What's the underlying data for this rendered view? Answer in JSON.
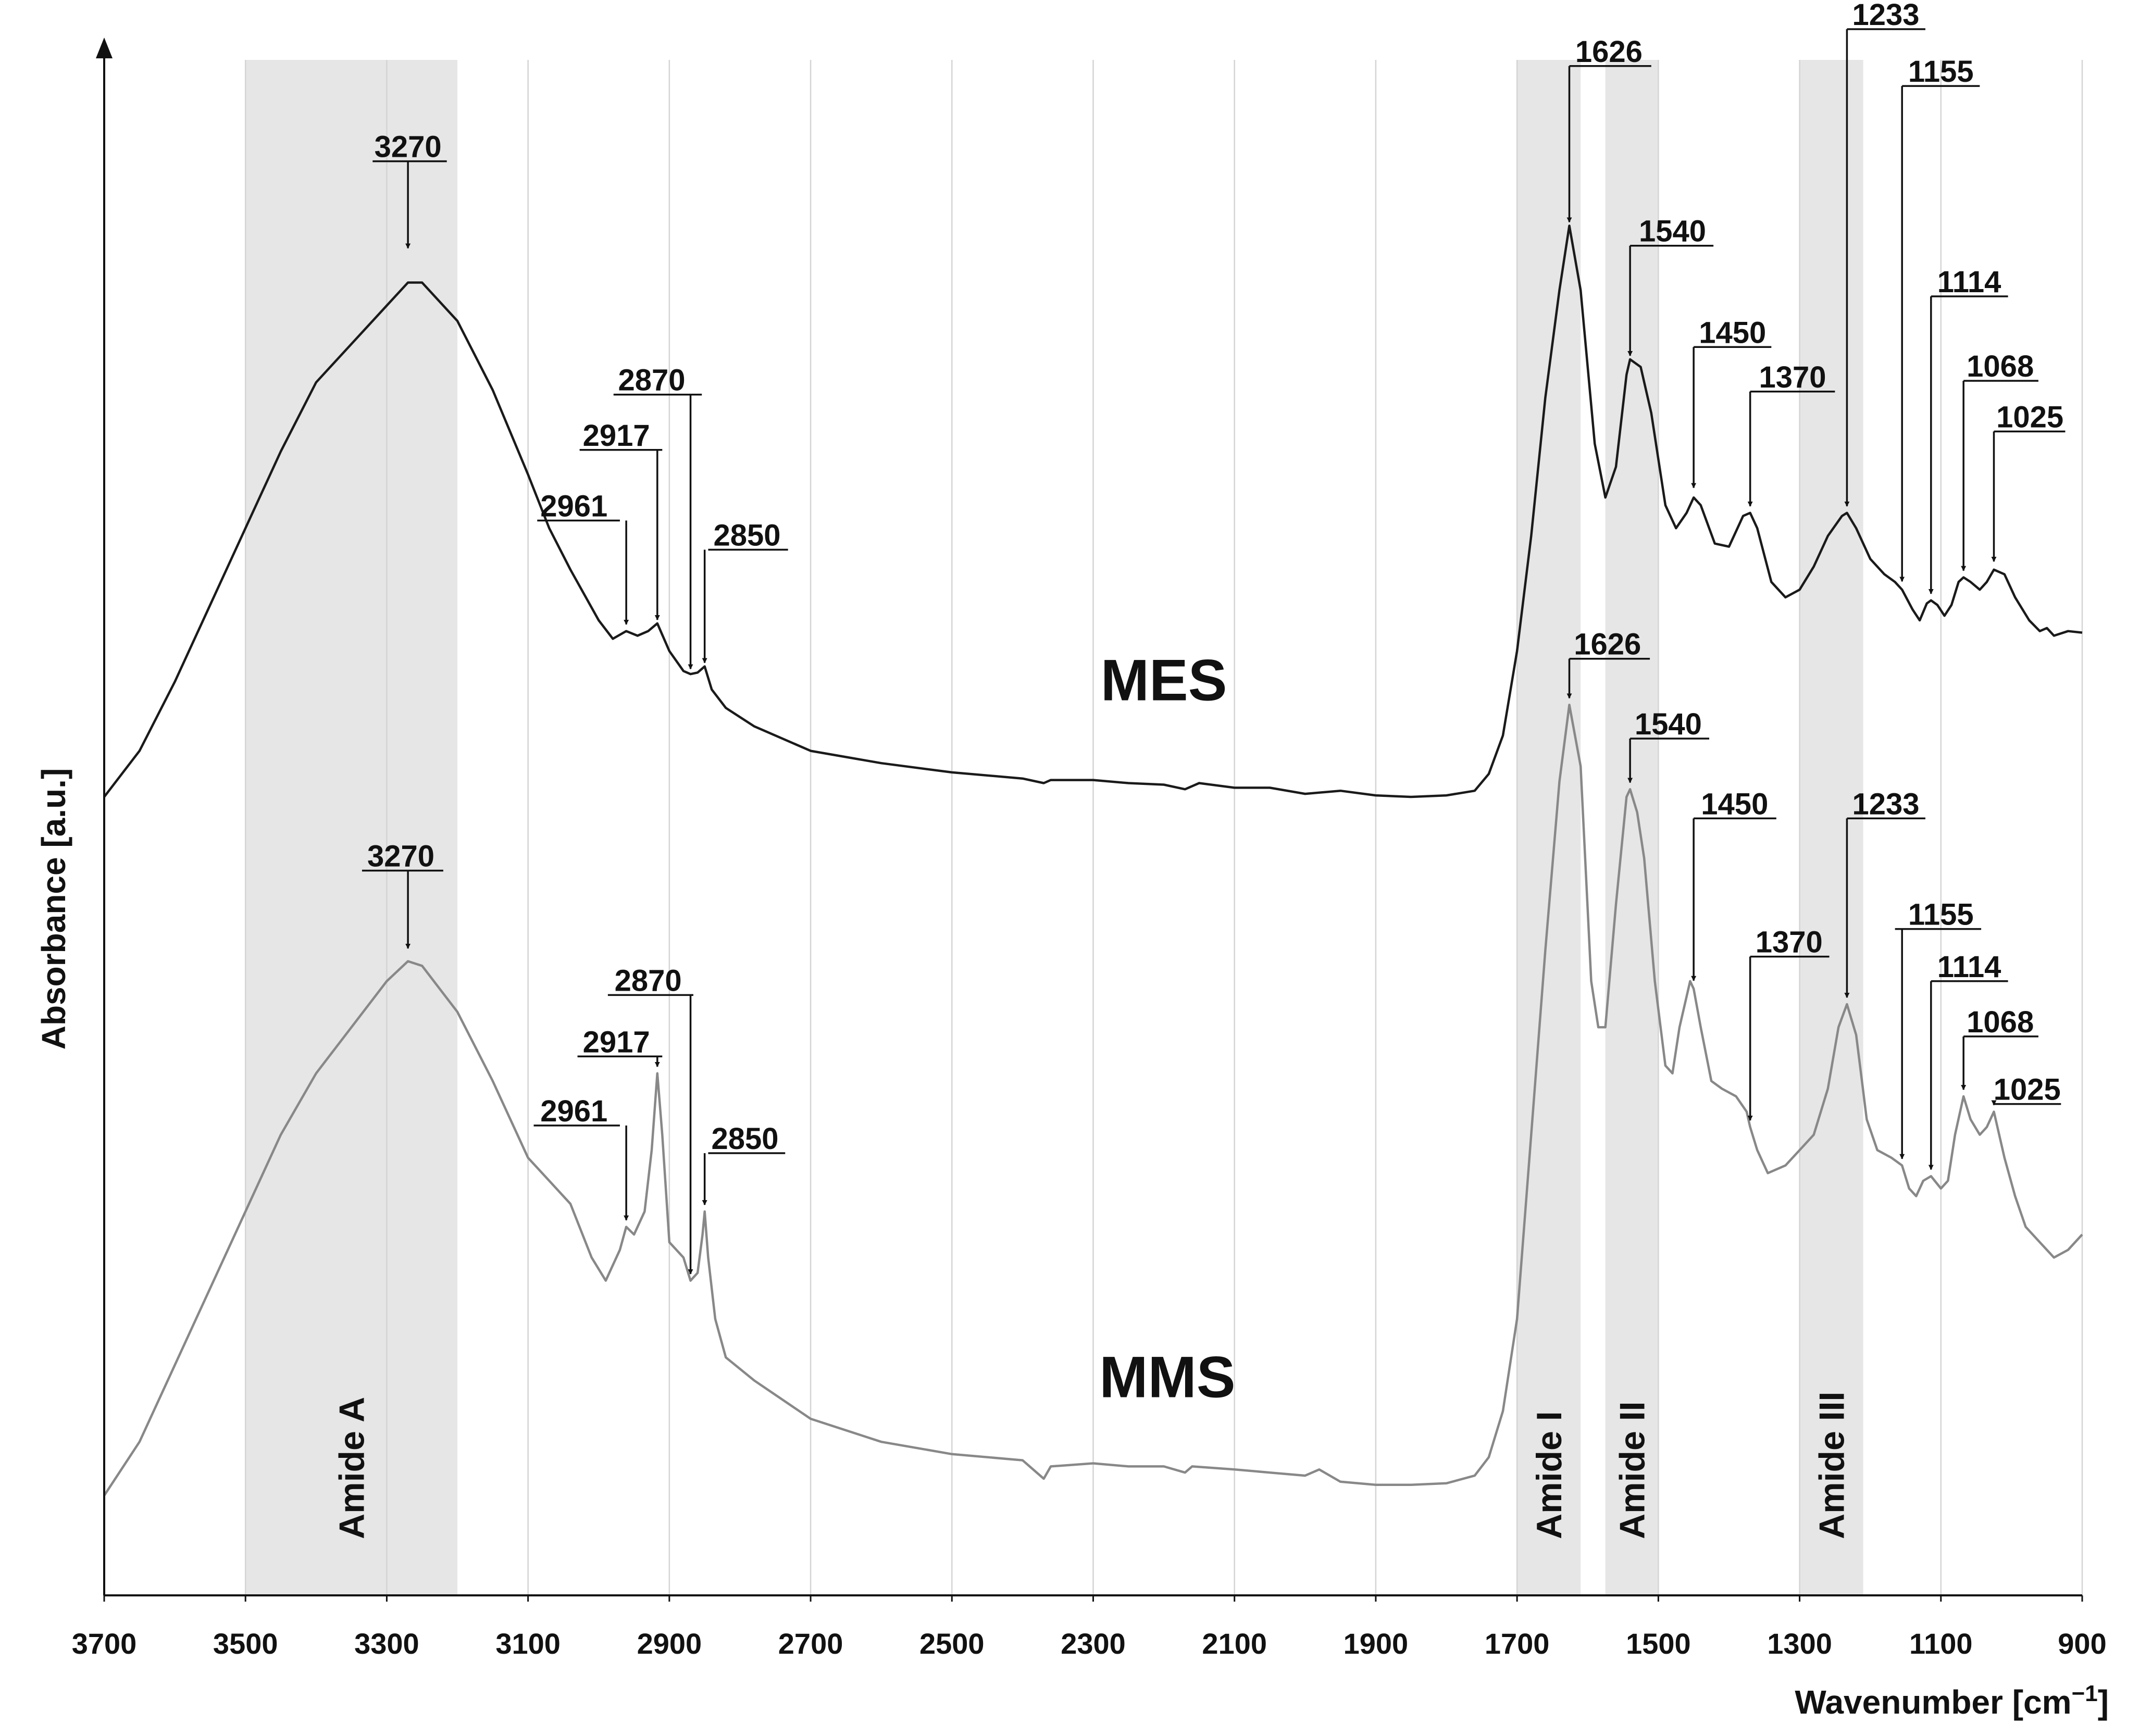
{
  "chart_data": {
    "type": "line",
    "title": "",
    "xlabel_main": "Wavenumber [cm",
    "xlabel_sup": "−1",
    "xlabel_end": "]",
    "ylabel": "Absorbance [a.u.]",
    "xlim": [
      3700,
      900
    ],
    "x_reversed": true,
    "ylim": [
      0,
      100
    ],
    "y_ticks_shown": false,
    "grid": "vertical",
    "x_ticks": [
      "3700",
      "3500",
      "3300",
      "3100",
      "2900",
      "2700",
      "2500",
      "2300",
      "2100",
      "1900",
      "1700",
      "1500",
      "1300",
      "1100",
      "900"
    ],
    "bands": [
      {
        "label": "Amide A",
        "from": 3500,
        "to": 3200
      },
      {
        "label": "Amide I",
        "from": 1700,
        "to": 1610
      },
      {
        "label": "Amide II",
        "from": 1575,
        "to": 1500
      },
      {
        "label": "Amide III",
        "from": 1300,
        "to": 1210
      }
    ],
    "series": [
      {
        "name": "MES",
        "color": "#1a1a1a",
        "points": [
          [
            3700,
            52
          ],
          [
            3650,
            55
          ],
          [
            3600,
            59.5
          ],
          [
            3550,
            64.5
          ],
          [
            3500,
            69.5
          ],
          [
            3450,
            74.5
          ],
          [
            3400,
            79
          ],
          [
            3350,
            81.5
          ],
          [
            3300,
            84
          ],
          [
            3270,
            85.5
          ],
          [
            3250,
            85.5
          ],
          [
            3200,
            83
          ],
          [
            3150,
            78.5
          ],
          [
            3100,
            73
          ],
          [
            3070,
            69.5
          ],
          [
            3040,
            66.8
          ],
          [
            3000,
            63.5
          ],
          [
            2980,
            62.3
          ],
          [
            2961,
            62.8
          ],
          [
            2945,
            62.5
          ],
          [
            2930,
            62.8
          ],
          [
            2917,
            63.3
          ],
          [
            2900,
            61.5
          ],
          [
            2880,
            60.2
          ],
          [
            2870,
            60
          ],
          [
            2860,
            60.1
          ],
          [
            2850,
            60.5
          ],
          [
            2840,
            59
          ],
          [
            2820,
            57.8
          ],
          [
            2780,
            56.6
          ],
          [
            2700,
            55
          ],
          [
            2600,
            54.2
          ],
          [
            2500,
            53.6
          ],
          [
            2400,
            53.2
          ],
          [
            2370,
            52.9
          ],
          [
            2360,
            53.1
          ],
          [
            2300,
            53.1
          ],
          [
            2250,
            52.9
          ],
          [
            2200,
            52.8
          ],
          [
            2170,
            52.5
          ],
          [
            2150,
            52.9
          ],
          [
            2100,
            52.6
          ],
          [
            2050,
            52.6
          ],
          [
            2000,
            52.2
          ],
          [
            1950,
            52.4
          ],
          [
            1900,
            52.1
          ],
          [
            1850,
            52
          ],
          [
            1800,
            52.1
          ],
          [
            1760,
            52.4
          ],
          [
            1740,
            53.5
          ],
          [
            1720,
            56
          ],
          [
            1700,
            61.5
          ],
          [
            1680,
            69
          ],
          [
            1660,
            78
          ],
          [
            1640,
            85
          ],
          [
            1626,
            89.2
          ],
          [
            1610,
            85
          ],
          [
            1590,
            75
          ],
          [
            1575,
            71.5
          ],
          [
            1560,
            73.5
          ],
          [
            1545,
            79.5
          ],
          [
            1540,
            80.5
          ],
          [
            1525,
            80
          ],
          [
            1510,
            77
          ],
          [
            1490,
            71
          ],
          [
            1475,
            69.5
          ],
          [
            1460,
            70.5
          ],
          [
            1450,
            71.5
          ],
          [
            1440,
            71
          ],
          [
            1420,
            68.5
          ],
          [
            1400,
            68.3
          ],
          [
            1380,
            70.3
          ],
          [
            1370,
            70.5
          ],
          [
            1360,
            69.5
          ],
          [
            1340,
            66
          ],
          [
            1320,
            65
          ],
          [
            1300,
            65.5
          ],
          [
            1280,
            67
          ],
          [
            1260,
            69
          ],
          [
            1240,
            70.3
          ],
          [
            1233,
            70.5
          ],
          [
            1220,
            69.5
          ],
          [
            1200,
            67.5
          ],
          [
            1180,
            66.5
          ],
          [
            1165,
            66
          ],
          [
            1155,
            65.5
          ],
          [
            1140,
            64.2
          ],
          [
            1130,
            63.5
          ],
          [
            1120,
            64.6
          ],
          [
            1114,
            64.8
          ],
          [
            1105,
            64.5
          ],
          [
            1095,
            63.8
          ],
          [
            1085,
            64.5
          ],
          [
            1075,
            66
          ],
          [
            1068,
            66.3
          ],
          [
            1058,
            66
          ],
          [
            1045,
            65.5
          ],
          [
            1035,
            66
          ],
          [
            1025,
            66.8
          ],
          [
            1010,
            66.5
          ],
          [
            995,
            65
          ],
          [
            975,
            63.5
          ],
          [
            960,
            62.8
          ],
          [
            950,
            63
          ],
          [
            940,
            62.5
          ],
          [
            920,
            62.8
          ],
          [
            900,
            62.7
          ]
        ]
      },
      {
        "name": "MMS",
        "color": "#888888",
        "points": [
          [
            3700,
            6.5
          ],
          [
            3650,
            10
          ],
          [
            3600,
            15
          ],
          [
            3550,
            20
          ],
          [
            3500,
            25
          ],
          [
            3450,
            30
          ],
          [
            3400,
            34
          ],
          [
            3350,
            37
          ],
          [
            3300,
            40
          ],
          [
            3270,
            41.3
          ],
          [
            3250,
            41
          ],
          [
            3200,
            38
          ],
          [
            3150,
            33.5
          ],
          [
            3100,
            28.5
          ],
          [
            3070,
            27
          ],
          [
            3040,
            25.5
          ],
          [
            3010,
            22
          ],
          [
            2990,
            20.5
          ],
          [
            2970,
            22.5
          ],
          [
            2961,
            24
          ],
          [
            2950,
            23.5
          ],
          [
            2935,
            25
          ],
          [
            2925,
            29
          ],
          [
            2917,
            34
          ],
          [
            2910,
            30
          ],
          [
            2900,
            23
          ],
          [
            2880,
            22
          ],
          [
            2870,
            20.5
          ],
          [
            2860,
            21
          ],
          [
            2853,
            23.5
          ],
          [
            2850,
            25
          ],
          [
            2845,
            22
          ],
          [
            2835,
            18
          ],
          [
            2820,
            15.5
          ],
          [
            2780,
            14
          ],
          [
            2700,
            11.5
          ],
          [
            2600,
            10
          ],
          [
            2500,
            9.2
          ],
          [
            2400,
            8.8
          ],
          [
            2370,
            7.6
          ],
          [
            2360,
            8.4
          ],
          [
            2300,
            8.6
          ],
          [
            2250,
            8.4
          ],
          [
            2200,
            8.4
          ],
          [
            2170,
            8
          ],
          [
            2160,
            8.4
          ],
          [
            2100,
            8.2
          ],
          [
            2050,
            8
          ],
          [
            2000,
            7.8
          ],
          [
            1980,
            8.2
          ],
          [
            1950,
            7.4
          ],
          [
            1900,
            7.2
          ],
          [
            1850,
            7.2
          ],
          [
            1800,
            7.3
          ],
          [
            1760,
            7.8
          ],
          [
            1740,
            9
          ],
          [
            1720,
            12
          ],
          [
            1700,
            18
          ],
          [
            1680,
            30
          ],
          [
            1660,
            42
          ],
          [
            1640,
            53
          ],
          [
            1626,
            58
          ],
          [
            1610,
            54
          ],
          [
            1595,
            40
          ],
          [
            1585,
            37
          ],
          [
            1575,
            37
          ],
          [
            1560,
            45
          ],
          [
            1545,
            52
          ],
          [
            1540,
            52.5
          ],
          [
            1530,
            51
          ],
          [
            1520,
            48
          ],
          [
            1505,
            40
          ],
          [
            1490,
            34.5
          ],
          [
            1480,
            34
          ],
          [
            1470,
            37
          ],
          [
            1455,
            40
          ],
          [
            1450,
            39.5
          ],
          [
            1440,
            37
          ],
          [
            1425,
            33.5
          ],
          [
            1410,
            33
          ],
          [
            1390,
            32.5
          ],
          [
            1375,
            31.5
          ],
          [
            1370,
            30.5
          ],
          [
            1360,
            29
          ],
          [
            1345,
            27.5
          ],
          [
            1320,
            28
          ],
          [
            1300,
            29
          ],
          [
            1280,
            30
          ],
          [
            1260,
            33
          ],
          [
            1245,
            37
          ],
          [
            1233,
            38.5
          ],
          [
            1220,
            36.5
          ],
          [
            1205,
            31
          ],
          [
            1190,
            29
          ],
          [
            1170,
            28.5
          ],
          [
            1155,
            28
          ],
          [
            1145,
            26.5
          ],
          [
            1135,
            26
          ],
          [
            1125,
            27
          ],
          [
            1114,
            27.3
          ],
          [
            1100,
            26.5
          ],
          [
            1090,
            27
          ],
          [
            1080,
            30
          ],
          [
            1068,
            32.5
          ],
          [
            1058,
            31
          ],
          [
            1045,
            30
          ],
          [
            1035,
            30.5
          ],
          [
            1025,
            31.5
          ],
          [
            1010,
            28.5
          ],
          [
            995,
            26
          ],
          [
            980,
            24
          ],
          [
            960,
            23
          ],
          [
            940,
            22
          ],
          [
            920,
            22.5
          ],
          [
            900,
            23.5
          ]
        ]
      }
    ],
    "series_labels": [
      {
        "name": "MES",
        "x": 2200,
        "y": 58.3
      },
      {
        "name": "MMS",
        "x": 2195,
        "y": 12.9
      }
    ],
    "annotations": [
      {
        "series": "MES",
        "label": "3270",
        "x": 3270,
        "ly": 87.6,
        "tx": 3270,
        "ty": 93.4,
        "al": 3320,
        "ar": 3215
      },
      {
        "series": "MES",
        "label": "2961",
        "x": 2961,
        "ly": 63.1,
        "tx": 3035,
        "ty": 70.0,
        "al": 3087,
        "ar": 2970
      },
      {
        "series": "MES",
        "label": "2917",
        "x": 2917,
        "ly": 63.4,
        "tx": 2975,
        "ty": 74.6,
        "al": 3027,
        "ar": 2910
      },
      {
        "series": "MES",
        "label": "2870",
        "x": 2870,
        "ly": 60.2,
        "tx": 2925,
        "ty": 78.2,
        "al": 2979,
        "ar": 2854
      },
      {
        "series": "MES",
        "label": "2850",
        "x": 2850,
        "ly": 60.6,
        "tx": 2790,
        "ty": 68.1,
        "al": 2845,
        "ar": 2732
      },
      {
        "series": "MES",
        "label": "1626",
        "x": 1626,
        "ly": 89.3,
        "tx": 1570,
        "ty": 99.6,
        "al": 1626,
        "ar": 1510
      },
      {
        "series": "MES",
        "label": "1540",
        "x": 1540,
        "ly": 80.6,
        "tx": 1480,
        "ty": 87.9,
        "al": 1540,
        "ar": 1422
      },
      {
        "series": "MES",
        "label": "1450",
        "x": 1450,
        "ly": 72.0,
        "tx": 1395,
        "ty": 81.3,
        "al": 1450,
        "ar": 1340
      },
      {
        "series": "MES",
        "label": "1370",
        "x": 1370,
        "ly": 70.8,
        "tx": 1310,
        "ty": 78.4,
        "al": 1370,
        "ar": 1250
      },
      {
        "series": "MES",
        "label": "1233",
        "x": 1233,
        "ly": 70.8,
        "tx": 1178,
        "ty": 102.0,
        "al": 1233,
        "ar": 1122
      },
      {
        "series": "MES",
        "label": "1155",
        "x": 1155,
        "ly": 65.9,
        "tx": 1100,
        "ty": 98.3,
        "al": 1155,
        "ar": 1045
      },
      {
        "series": "MES",
        "label": "1114",
        "x": 1114,
        "ly": 65.1,
        "tx": 1060,
        "ty": 84.6,
        "al": 1114,
        "ar": 1005
      },
      {
        "series": "MES",
        "label": "1068",
        "x": 1068,
        "ly": 66.6,
        "tx": 1016,
        "ty": 79.1,
        "al": 1068,
        "ar": 962
      },
      {
        "series": "MES",
        "label": "1025",
        "x": 1025,
        "ly": 67.2,
        "tx": 974,
        "ty": 75.8,
        "al": 1025,
        "ar": 924
      },
      {
        "series": "MMS",
        "label": "3270",
        "x": 3270,
        "ly": 42.0,
        "tx": 3280,
        "ty": 47.2,
        "al": 3335,
        "ar": 3220
      },
      {
        "series": "MMS",
        "label": "2961",
        "x": 2961,
        "ly": 24.3,
        "tx": 3035,
        "ty": 30.6,
        "al": 3092,
        "ar": 2970
      },
      {
        "series": "MMS",
        "label": "2917",
        "x": 2917,
        "ly": 34.3,
        "tx": 2975,
        "ty": 35.1,
        "al": 3030,
        "ar": 2910
      },
      {
        "series": "MMS",
        "label": "2870",
        "x": 2870,
        "ly": 20.8,
        "tx": 2930,
        "ty": 39.1,
        "al": 2987,
        "ar": 2866
      },
      {
        "series": "MMS",
        "label": "2850",
        "x": 2850,
        "ly": 25.3,
        "tx": 2793,
        "ty": 28.8,
        "al": 2845,
        "ar": 2736
      },
      {
        "series": "MMS",
        "label": "1626",
        "x": 1626,
        "ly": 58.3,
        "tx": 1572,
        "ty": 61.0,
        "al": 1626,
        "ar": 1512
      },
      {
        "series": "MMS",
        "label": "1540",
        "x": 1540,
        "ly": 52.8,
        "tx": 1486,
        "ty": 55.8,
        "al": 1540,
        "ar": 1428
      },
      {
        "series": "MMS",
        "label": "1450",
        "x": 1450,
        "ly": 39.9,
        "tx": 1392,
        "ty": 50.6,
        "al": 1450,
        "ar": 1333
      },
      {
        "series": "MMS",
        "label": "1370",
        "x": 1370,
        "ly": 30.8,
        "tx": 1315,
        "ty": 41.6,
        "al": 1370,
        "ar": 1258
      },
      {
        "series": "MMS",
        "label": "1233",
        "x": 1233,
        "ly": 38.8,
        "tx": 1178,
        "ty": 50.6,
        "al": 1233,
        "ar": 1122
      },
      {
        "series": "MMS",
        "label": "1155",
        "x": 1155,
        "ly": 28.3,
        "tx": 1100,
        "ty": 43.4,
        "al": 1165,
        "ar": 1043
      },
      {
        "series": "MMS",
        "label": "1114",
        "x": 1114,
        "ly": 27.6,
        "tx": 1060,
        "ty": 40.0,
        "al": 1114,
        "ar": 1005
      },
      {
        "series": "MMS",
        "label": "1068",
        "x": 1068,
        "ly": 32.8,
        "tx": 1016,
        "ty": 36.4,
        "al": 1068,
        "ar": 962
      },
      {
        "series": "MMS",
        "label": "1025",
        "x": 1025,
        "ly": 31.8,
        "tx": 978,
        "ty": 32.0,
        "al": 1025,
        "ar": 930
      }
    ]
  }
}
